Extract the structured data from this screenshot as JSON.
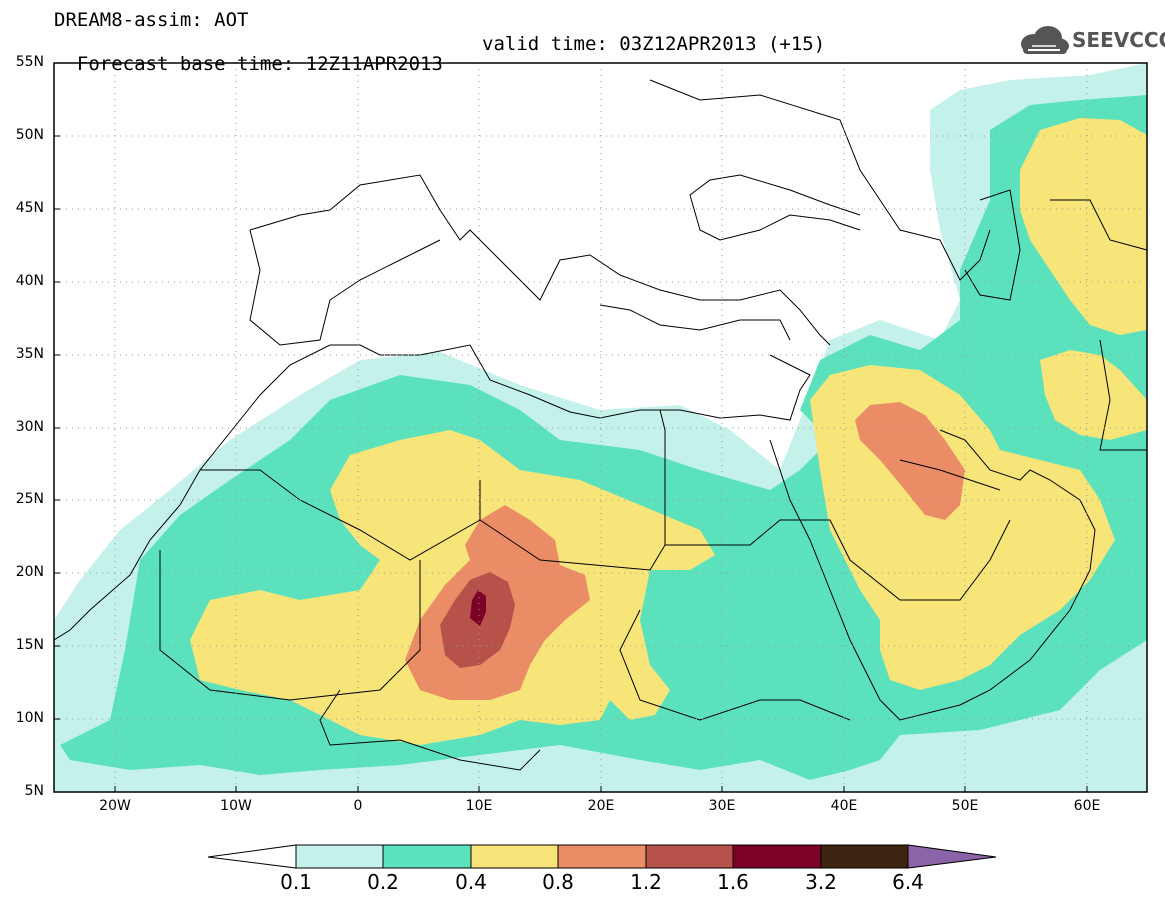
{
  "header": {
    "title_line1": "DREAM8-assim: AOT",
    "title_line2_base": "Forecast base time: 12Z11APR2013",
    "title_line2_valid": "valid time: 03Z12APR2013 (+15)",
    "logo_text": "SEEVCCC"
  },
  "map": {
    "lat_labels": [
      "55N",
      "50N",
      "45N",
      "40N",
      "35N",
      "30N",
      "25N",
      "20N",
      "15N",
      "10N",
      "5N"
    ],
    "lon_labels": [
      "20W",
      "10W",
      "0",
      "10E",
      "20E",
      "30E",
      "40E",
      "50E",
      "60E"
    ],
    "lat_range": [
      5,
      55
    ],
    "lon_range": [
      -25,
      65
    ],
    "grid": "dotted",
    "background_color": "#ffffff",
    "coastline_color": "#000000"
  },
  "colorbar": {
    "labels": [
      "0.1",
      "0.2",
      "0.4",
      "0.8",
      "1.2",
      "1.6",
      "3.2",
      "6.4"
    ],
    "under_color": "#ffffff",
    "over_color": "#8a63a8",
    "colors": [
      "#c4f2ea",
      "#5be2bd",
      "#f7e57a",
      "#ea8c66",
      "#b7524a",
      "#7d0027",
      "#3d2410"
    ]
  }
}
